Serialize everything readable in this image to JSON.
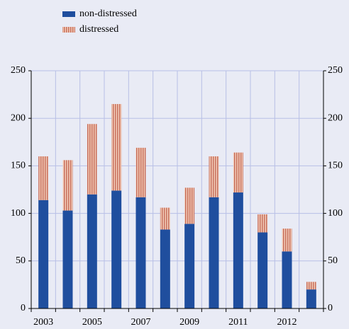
{
  "chart_data": {
    "type": "stacked_bar",
    "categories": [
      "2003",
      null,
      "2005",
      null,
      "2007",
      null,
      "2009",
      null,
      "2011",
      null,
      "2012",
      null
    ],
    "series": [
      {
        "name": "non-distressed",
        "color": "#1f4e9e",
        "values": [
          114,
          103,
          120,
          124,
          117,
          83,
          89,
          117,
          122,
          80,
          60,
          20
        ]
      },
      {
        "name": "distressed",
        "color": "#c8705e",
        "values": [
          46,
          53,
          74,
          91,
          52,
          23,
          38,
          43,
          42,
          19,
          24,
          8
        ]
      }
    ],
    "ylim": [
      0,
      250
    ],
    "yticks": [
      0,
      50,
      100,
      150,
      200,
      250
    ],
    "y2lim": [
      0,
      250
    ],
    "y2ticks": [
      0,
      50,
      100,
      150,
      200,
      250
    ],
    "grid": true
  }
}
